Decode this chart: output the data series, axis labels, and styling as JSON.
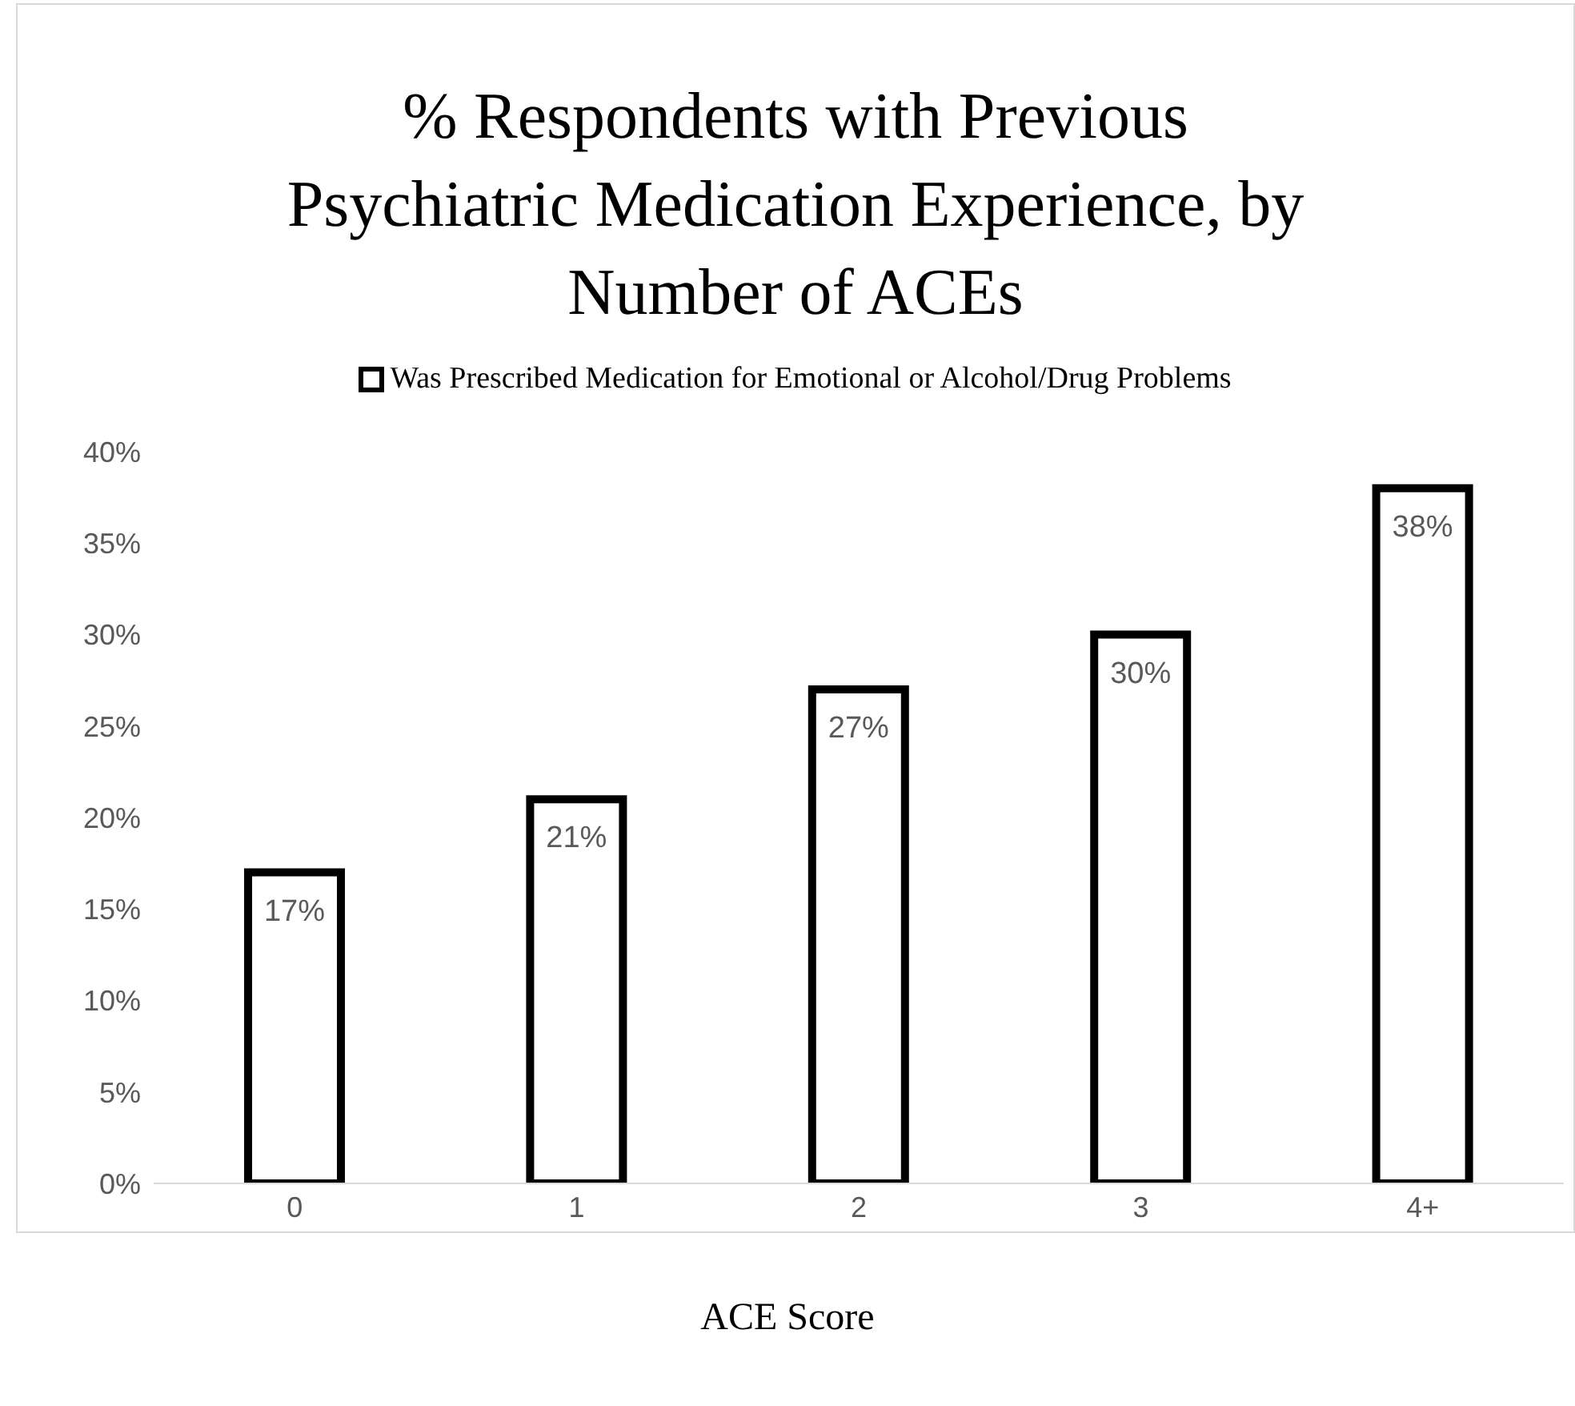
{
  "chart_data": {
    "type": "bar",
    "title": "% Respondents with Previous Psychiatric Medication Experience, by Number of ACEs",
    "xlabel": "ACE Score",
    "categories": [
      "0",
      "1",
      "2",
      "3",
      "4+"
    ],
    "series": [
      {
        "name": "Was Prescribed Medication for Emotional or Alcohol/Drug Problems",
        "color": "#000000",
        "values": [
          17,
          21,
          27,
          30,
          38
        ],
        "value_labels": [
          "17%",
          "21%",
          "27%",
          "30%",
          "38%"
        ]
      }
    ],
    "ylim": [
      0,
      40
    ],
    "yticks": [
      {
        "value": 0,
        "label": "0%"
      },
      {
        "value": 5,
        "label": "5%"
      },
      {
        "value": 10,
        "label": "10%"
      },
      {
        "value": 15,
        "label": "15%"
      },
      {
        "value": 20,
        "label": "20%"
      },
      {
        "value": 25,
        "label": "25%"
      },
      {
        "value": 30,
        "label": "30%"
      },
      {
        "value": 35,
        "label": "35%"
      },
      {
        "value": 40,
        "label": "40%"
      }
    ],
    "grid": false,
    "legend": "top"
  }
}
